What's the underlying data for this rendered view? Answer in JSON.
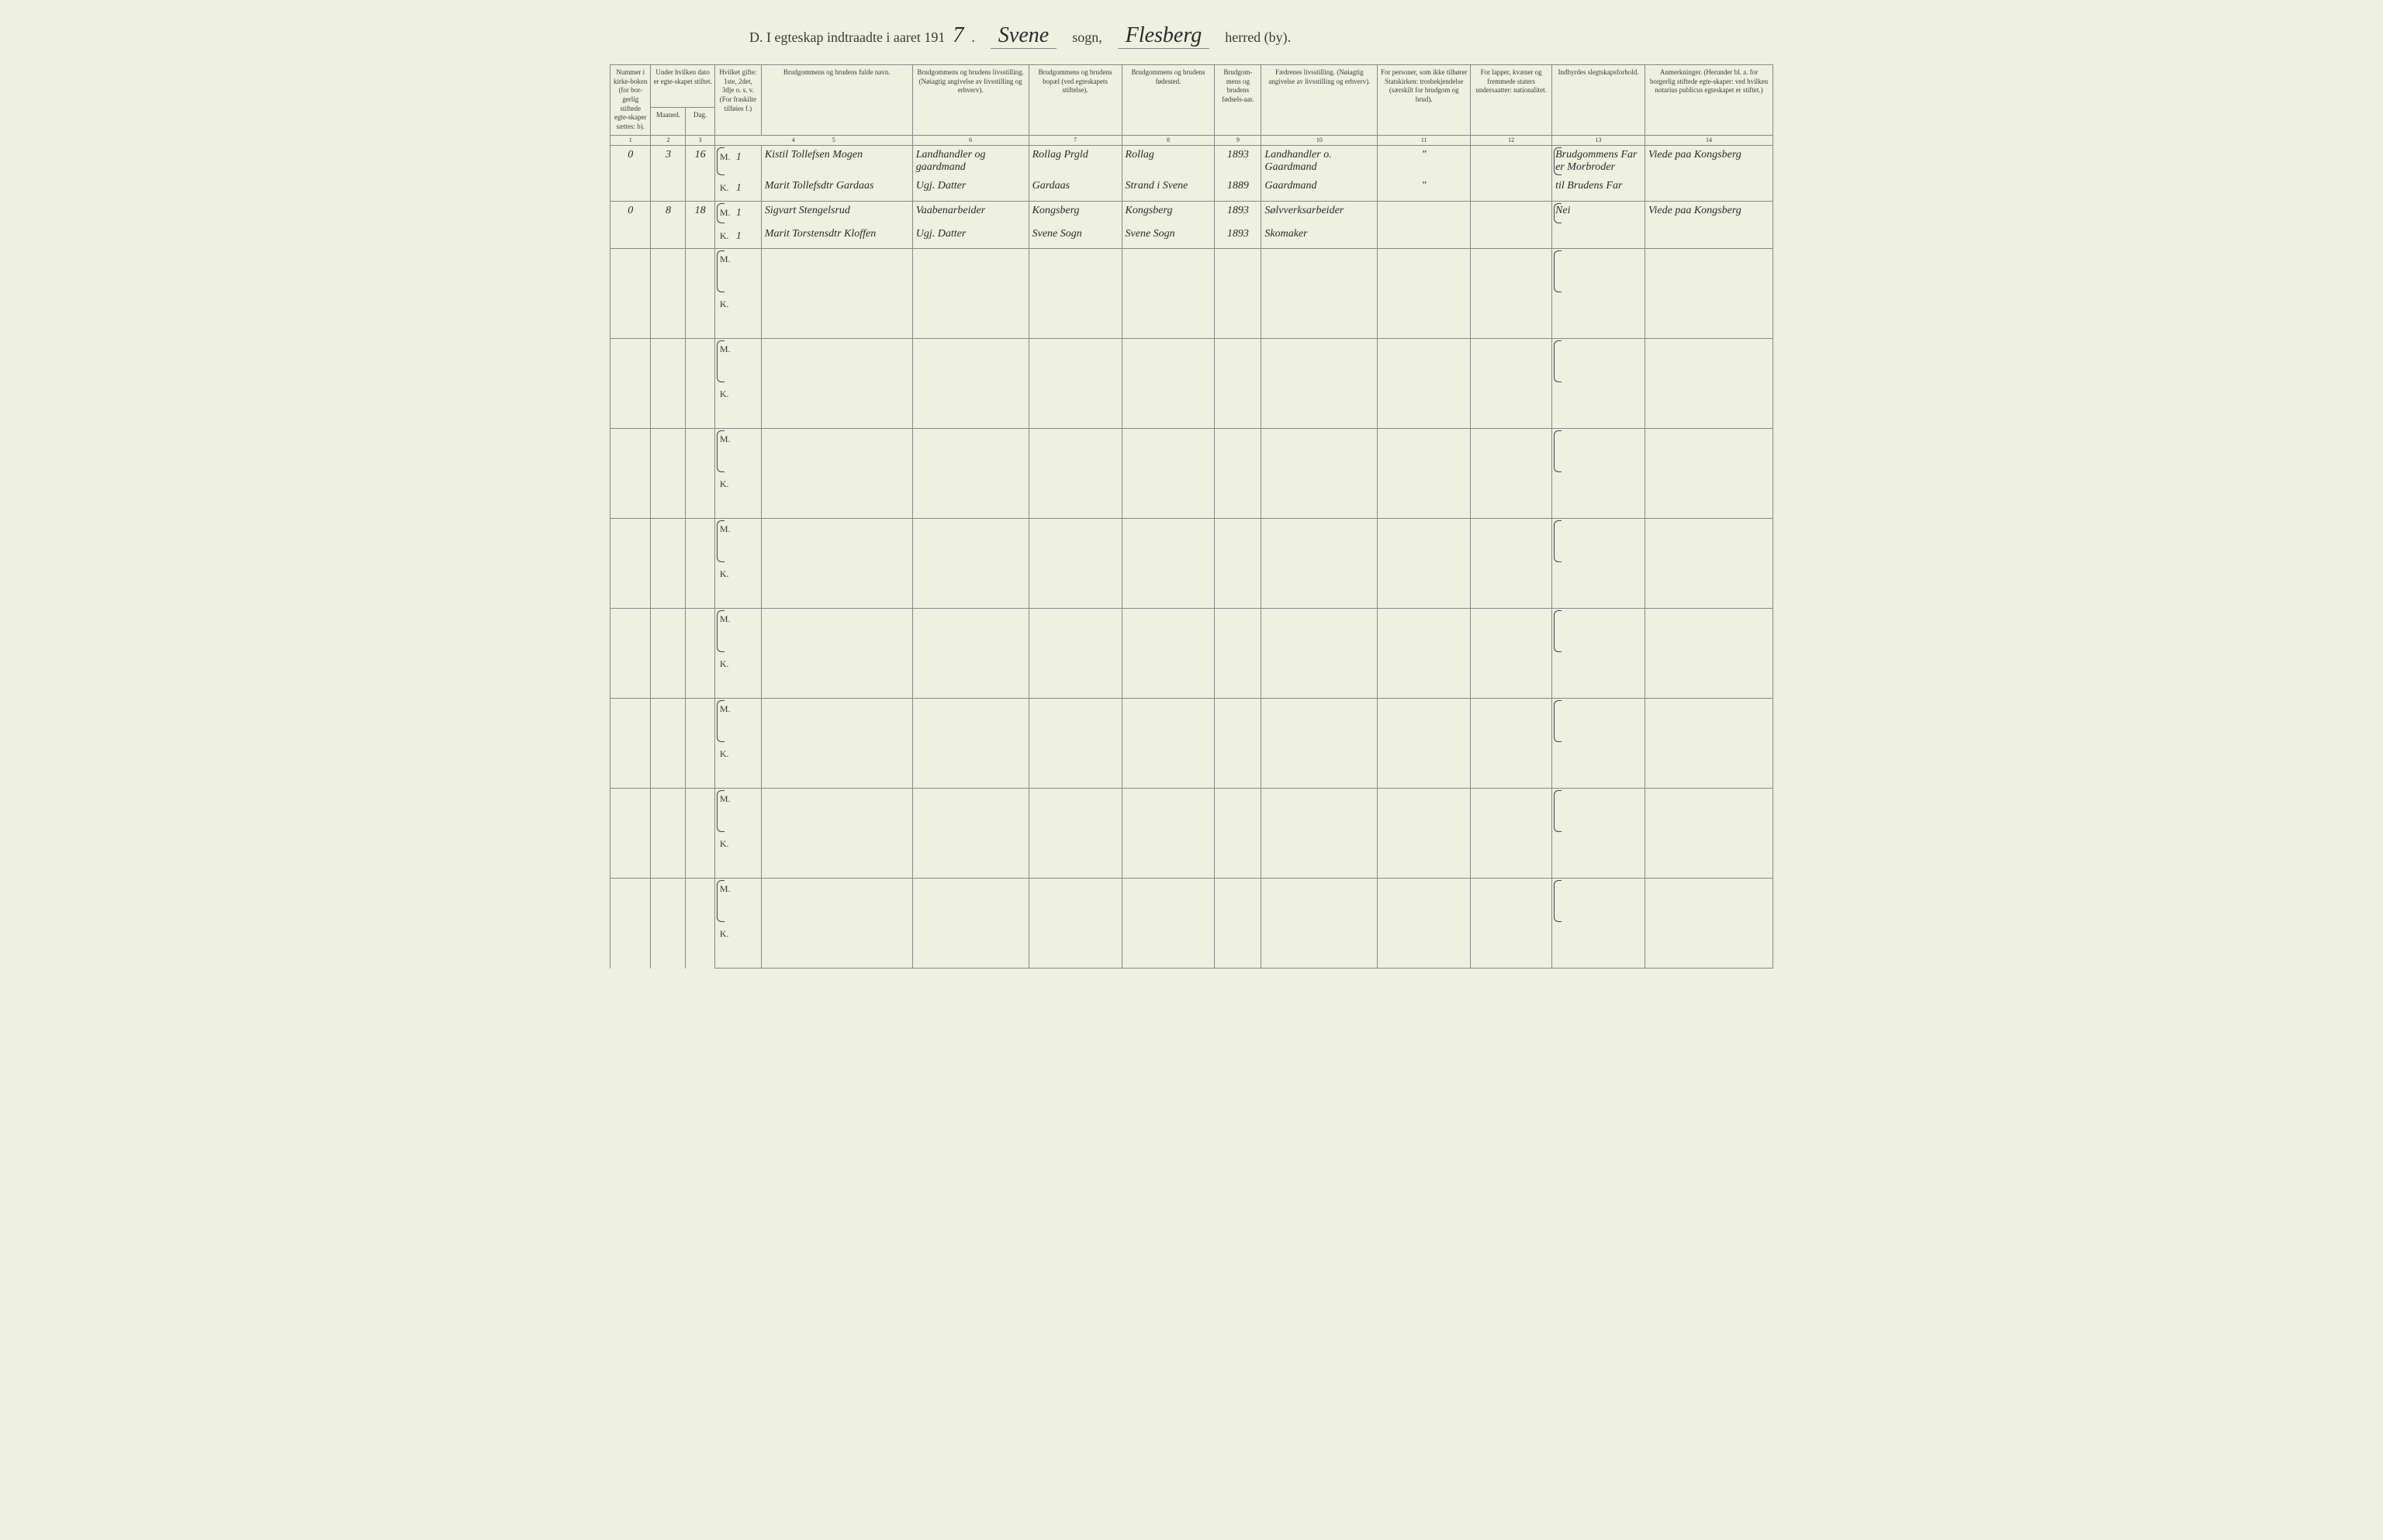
{
  "title": {
    "prefix": "D.  I egteskap indtraadte i aaret 191",
    "year_suffix": "7",
    "period": ".",
    "sogn_value": "Svene",
    "sogn_label": "sogn,",
    "herred_value": "Flesberg",
    "herred_label": "herred (by)."
  },
  "headers": {
    "c1": "Nummer i kirke-boken (for bor-gerlig stiftede egte-skaper sættes: b).",
    "c2_top": "Under hvilken dato er egte-skapet stiftet.",
    "c2a": "Maaned.",
    "c2b": "Dag.",
    "c4": "Hvilket gifte: 1ste, 2det, 3dje o. s. v. (For fraskilte tilføies f.)",
    "c5": "Brudgommens og brudens fulde navn.",
    "c6": "Brudgommens og brudens livsstilling. (Nøiagtig angivelse av livsstilling og erhverv).",
    "c7": "Brudgommens og brudens bopæl (ved egteskapets stiftelse).",
    "c8": "Brudgommens og brudens fødested.",
    "c9": "Brudgom-mens og brudens fødsels-aar.",
    "c10": "Fædrenes livsstilling. (Nøiagtig angivelse av livsstilling og erhverv).",
    "c11": "For personer, som ikke tilhører Statskirken: trosbekjendelse (særskilt for brudgom og brud).",
    "c12": "For lapper, kvæner og fremmede staters undersaatter: nationalitet.",
    "c13": "Indbyrdes slegtskapsforhold.",
    "c14": "Anmerkninger. (Herunder bl. a. for borgerlig stiftede egte-skaper: ved hvilken notarius publicus egteskapet er stiftet.)"
  },
  "colnums": [
    "1",
    "2",
    "3",
    "4",
    "5",
    "6",
    "7",
    "8",
    "9",
    "10",
    "11",
    "12",
    "13",
    "14"
  ],
  "mk": {
    "m": "M.",
    "k": "K."
  },
  "rows": [
    {
      "num": "0",
      "maaned": "3",
      "dag": "16",
      "m": {
        "gifte": "1",
        "navn": "Kistil Tollefsen Mogen",
        "stilling": "Landhandler og gaardmand",
        "bopael": "Rollag Prgld",
        "fodested": "Rollag",
        "aar": "1893",
        "far": "Landhandler o. Gaardmand",
        "tros": "\"",
        "nat": "",
        "slegt": "Brudgommens Far er Morbroder",
        "anm": "Viede paa Kongsberg"
      },
      "k": {
        "gifte": "1",
        "navn": "Marit Tollefsdtr Gardaas",
        "stilling": "Ugj. Datter",
        "bopael": "Gardaas",
        "fodested": "Strand i Svene",
        "aar": "1889",
        "far": "Gaardmand",
        "tros": "\"",
        "nat": "",
        "slegt": "til Brudens Far",
        "anm": ""
      }
    },
    {
      "num": "0",
      "maaned": "8",
      "dag": "18",
      "m": {
        "gifte": "1",
        "navn": "Sigvart Stengelsrud",
        "stilling": "Vaabenarbeider",
        "bopael": "Kongsberg",
        "fodested": "Kongsberg",
        "aar": "1893",
        "far": "Sølvverksarbeider",
        "tros": "",
        "nat": "",
        "slegt": "Nei",
        "anm": "Viede paa Kongsberg"
      },
      "k": {
        "gifte": "1",
        "navn": "Marit Torstensdtr Kloffen",
        "stilling": "Ugj. Datter",
        "bopael": "Svene Sogn",
        "fodested": "Svene Sogn",
        "aar": "1893",
        "far": "Skomaker",
        "tros": "",
        "nat": "",
        "slegt": "",
        "anm": ""
      }
    }
  ],
  "blank_rows": 8,
  "colors": {
    "paper": "#eef0e0",
    "ink": "#2a2a2a",
    "rule": "#888"
  }
}
